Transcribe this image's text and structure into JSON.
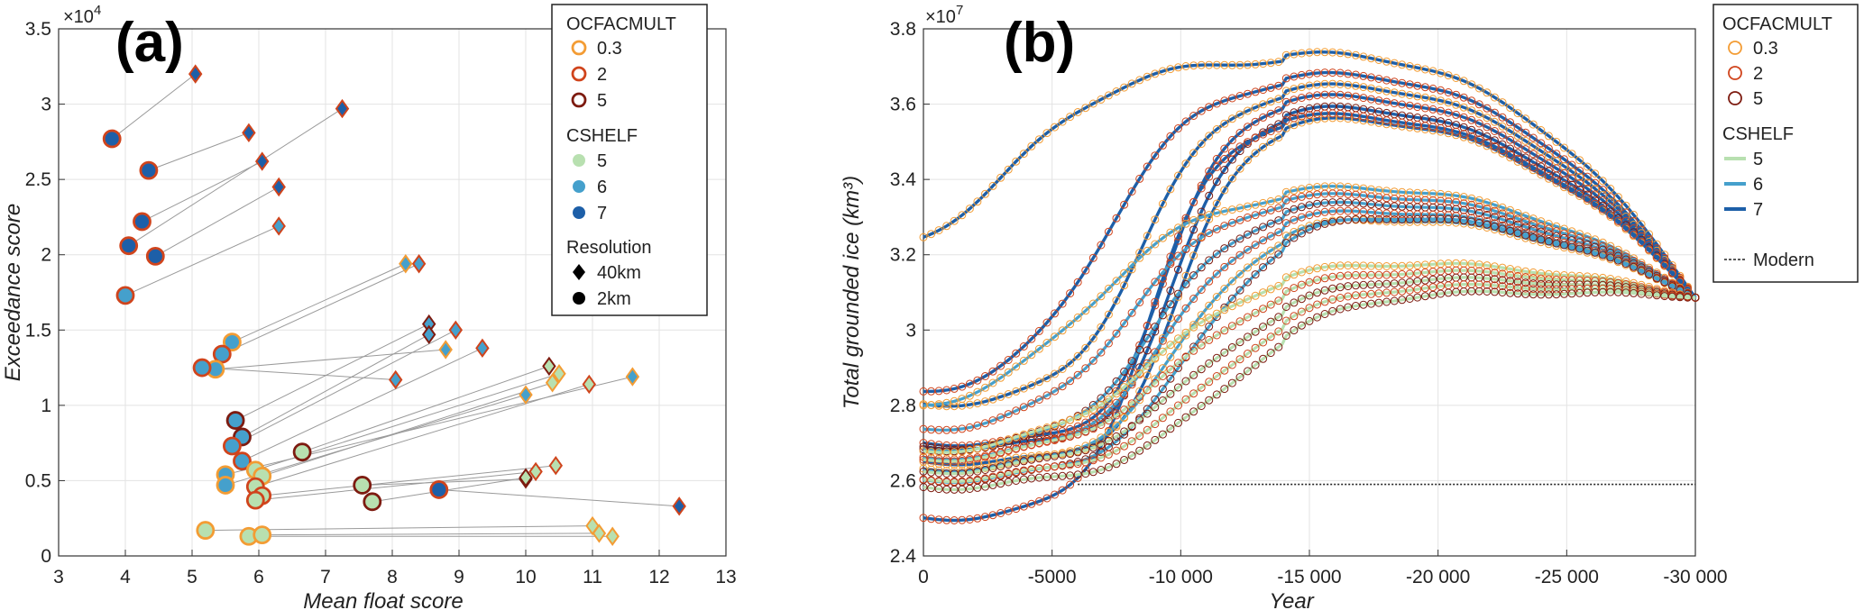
{
  "chart_data": [
    {
      "panel": "(a)",
      "type": "scatter",
      "xlabel": "Mean float score",
      "ylabel": "Exceedance score",
      "xlim": [
        3,
        13
      ],
      "ylim": [
        0,
        35000
      ],
      "xticks": [
        "3",
        "4",
        "5",
        "6",
        "7",
        "8",
        "9",
        "10",
        "11",
        "12",
        "13"
      ],
      "yticks": [
        "0",
        "0.5",
        "1",
        "1.5",
        "2",
        "2.5",
        "3",
        "3.5"
      ],
      "exponent_label": "×10",
      "exponent_power": "4",
      "grid": true,
      "legend": {
        "title_ocfac": "OCFACMULT",
        "ocfac_items": [
          {
            "label": "0.3",
            "color": "#f39c34"
          },
          {
            "label": "2",
            "color": "#d0441c"
          },
          {
            "label": "5",
            "color": "#7d1b10"
          }
        ],
        "title_cshelf": "CSHELF",
        "cshelf_items": [
          {
            "label": "5",
            "color": "#b8e0b0"
          },
          {
            "label": "6",
            "color": "#45a0cc"
          },
          {
            "label": "7",
            "color": "#1d5fa8"
          }
        ],
        "title_res": "Resolution",
        "res_items": [
          {
            "label": "40km",
            "marker": "diamond"
          },
          {
            "label": "2km",
            "marker": "circle"
          }
        ]
      },
      "pairs": [
        {
          "x2": 3.8,
          "y2": 27700,
          "x40": 5.05,
          "y40": 32000,
          "oc": "2",
          "cs": "7"
        },
        {
          "x2": 4.35,
          "y2": 25600,
          "x40": 5.85,
          "y40": 28100,
          "oc": "2",
          "cs": "7"
        },
        {
          "x2": 4.25,
          "y2": 22200,
          "x40": 6.05,
          "y40": 26200,
          "oc": "2",
          "cs": "7"
        },
        {
          "x2": 4.05,
          "y2": 20600,
          "x40": 7.25,
          "y40": 29700,
          "oc": "2",
          "cs": "7"
        },
        {
          "x2": 4.45,
          "y2": 19900,
          "x40": 6.3,
          "y40": 24500,
          "oc": "2",
          "cs": "7"
        },
        {
          "x2": 4.0,
          "y2": 17300,
          "x40": 6.3,
          "y40": 21900,
          "oc": "2",
          "cs": "6"
        },
        {
          "x2": 5.6,
          "y2": 14200,
          "x40": 8.2,
          "y40": 19400,
          "oc": "0.3",
          "cs": "6"
        },
        {
          "x2": 5.45,
          "y2": 13400,
          "x40": 8.4,
          "y40": 19400,
          "oc": "2",
          "cs": "6"
        },
        {
          "x2": 5.35,
          "y2": 12400,
          "x40": 8.8,
          "y40": 13700,
          "oc": "0.3",
          "cs": "6"
        },
        {
          "x2": 5.15,
          "y2": 12500,
          "x40": 8.05,
          "y40": 11700,
          "oc": "2",
          "cs": "6"
        },
        {
          "x2": 5.65,
          "y2": 9000,
          "x40": 8.55,
          "y40": 15400,
          "oc": "5",
          "cs": "6"
        },
        {
          "x2": 5.75,
          "y2": 7900,
          "x40": 8.55,
          "y40": 14700,
          "oc": "5",
          "cs": "6"
        },
        {
          "x2": 5.6,
          "y2": 7300,
          "x40": 8.95,
          "y40": 15000,
          "oc": "2",
          "cs": "6"
        },
        {
          "x2": 5.75,
          "y2": 6300,
          "x40": 9.35,
          "y40": 13800,
          "oc": "2",
          "cs": "6"
        },
        {
          "x2": 6.65,
          "y2": 6900,
          "x40": 10.35,
          "y40": 12600,
          "oc": "5",
          "cs": "5"
        },
        {
          "x2": 5.95,
          "y2": 5700,
          "x40": 10.5,
          "y40": 12100,
          "oc": "0.3",
          "cs": "5"
        },
        {
          "x2": 6.05,
          "y2": 5300,
          "x40": 10.4,
          "y40": 11500,
          "oc": "0.3",
          "cs": "5"
        },
        {
          "x2": 5.5,
          "y2": 5400,
          "x40": 11.6,
          "y40": 11900,
          "oc": "0.3",
          "cs": "6"
        },
        {
          "x2": 5.5,
          "y2": 4700,
          "x40": 10.0,
          "y40": 10700,
          "oc": "0.3",
          "cs": "6"
        },
        {
          "x2": 5.95,
          "y2": 4600,
          "x40": 10.95,
          "y40": 11400,
          "oc": "2",
          "cs": "5"
        },
        {
          "x2": 6.05,
          "y2": 4000,
          "x40": 10.45,
          "y40": 6000,
          "oc": "2",
          "cs": "5"
        },
        {
          "x2": 5.95,
          "y2": 3700,
          "x40": 10.15,
          "y40": 5600,
          "oc": "2",
          "cs": "5"
        },
        {
          "x2": 7.55,
          "y2": 4700,
          "x40": 10.0,
          "y40": 5100,
          "oc": "5",
          "cs": "5"
        },
        {
          "x2": 7.7,
          "y2": 3600,
          "x40": 10.0,
          "y40": 5200,
          "oc": "5",
          "cs": "5"
        },
        {
          "x2": 8.7,
          "y2": 4400,
          "x40": 12.3,
          "y40": 3300,
          "oc": "2",
          "cs": "7"
        },
        {
          "x2": 5.2,
          "y2": 1700,
          "x40": 11.0,
          "y40": 2000,
          "oc": "0.3",
          "cs": "5"
        },
        {
          "x2": 5.85,
          "y2": 1300,
          "x40": 11.3,
          "y40": 1300,
          "oc": "0.3",
          "cs": "5"
        },
        {
          "x2": 6.05,
          "y2": 1400,
          "x40": 11.1,
          "y40": 1500,
          "oc": "0.3",
          "cs": "5"
        }
      ]
    },
    {
      "panel": "(b)",
      "type": "line",
      "xlabel": "Year",
      "ylabel": "Total grounded ice (km³)",
      "xlim": [
        0,
        -30000
      ],
      "ylim": [
        24000000,
        38000000
      ],
      "xticks": [
        "0",
        "-5000",
        "-10 000",
        "-15 000",
        "-20 000",
        "-25 000",
        "-30 000"
      ],
      "yticks": [
        "2.4",
        "2.6",
        "2.8",
        "3",
        "3.2",
        "3.4",
        "3.6",
        "3.8"
      ],
      "exponent_label": "×10",
      "exponent_power": "7",
      "modern_value": 25900000,
      "legend": {
        "title_ocfac": "OCFACMULT",
        "ocfac_items": [
          {
            "label": "0.3",
            "color": "#f39c34"
          },
          {
            "label": "2",
            "color": "#d0441c"
          },
          {
            "label": "5",
            "color": "#7d1b10"
          }
        ],
        "title_cshelf": "CSHELF",
        "cshelf_items": [
          {
            "label": "5",
            "color": "#b8e0b0"
          },
          {
            "label": "6",
            "color": "#45a0cc"
          },
          {
            "label": "7",
            "color": "#1d5fa8"
          }
        ],
        "modern_label": "Modern"
      },
      "end_value": 30900000,
      "series": [
        {
          "start": 31500000,
          "plateau": 37200000,
          "rise_mid": -3500,
          "rise_w": 2200,
          "oc": "0.3",
          "cs": "7"
        },
        {
          "start": 28200000,
          "plateau": 36700000,
          "rise_mid": -7000,
          "rise_w": 1800,
          "oc": "2",
          "cs": "7"
        },
        {
          "start": 28000000,
          "plateau": 36400000,
          "rise_mid": -8500,
          "rise_w": 1500,
          "oc": "0.3",
          "cs": "7"
        },
        {
          "start": 27000000,
          "plateau": 36100000,
          "rise_mid": -9500,
          "rise_w": 1200,
          "oc": "2",
          "cs": "7"
        },
        {
          "start": 26900000,
          "plateau": 35800000,
          "rise_mid": -9800,
          "rise_w": 1200,
          "oc": "5",
          "cs": "7"
        },
        {
          "start": 26500000,
          "plateau": 35500000,
          "rise_mid": -10000,
          "rise_w": 1200,
          "oc": "0.3",
          "cs": "7"
        },
        {
          "start": 25000000,
          "plateau": 35600000,
          "rise_mid": -8800,
          "rise_w": 1300,
          "oc": "2",
          "cs": "7"
        },
        {
          "start": 27700000,
          "plateau": 33700000,
          "rise_mid": -6500,
          "rise_w": 2200,
          "oc": "0.3",
          "cs": "6"
        },
        {
          "start": 27300000,
          "plateau": 33500000,
          "rise_mid": -8000,
          "rise_w": 1800,
          "oc": "2",
          "cs": "6"
        },
        {
          "start": 26800000,
          "plateau": 33300000,
          "rise_mid": -9000,
          "rise_w": 1700,
          "oc": "5",
          "cs": "6"
        },
        {
          "start": 26600000,
          "plateau": 33100000,
          "rise_mid": -9500,
          "rise_w": 1700,
          "oc": "2",
          "cs": "6"
        },
        {
          "start": 26300000,
          "plateau": 32900000,
          "rise_mid": -10000,
          "rise_w": 1700,
          "oc": "0.3",
          "cs": "6"
        },
        {
          "start": 26000000,
          "plateau": 33000000,
          "rise_mid": -10500,
          "rise_w": 1800,
          "oc": "5",
          "cs": "6"
        },
        {
          "start": 26700000,
          "plateau": 31700000,
          "rise_mid": -9000,
          "rise_w": 2200,
          "oc": "0.3",
          "cs": "5"
        },
        {
          "start": 26500000,
          "plateau": 31500000,
          "rise_mid": -9800,
          "rise_w": 2200,
          "oc": "2",
          "cs": "5"
        },
        {
          "start": 26200000,
          "plateau": 31300000,
          "rise_mid": -10500,
          "rise_w": 2200,
          "oc": "5",
          "cs": "5"
        },
        {
          "start": 26000000,
          "plateau": 31100000,
          "rise_mid": -11000,
          "rise_w": 2200,
          "oc": "2",
          "cs": "5"
        },
        {
          "start": 25800000,
          "plateau": 30900000,
          "rise_mid": -11500,
          "rise_w": 2200,
          "oc": "5",
          "cs": "5"
        }
      ]
    }
  ],
  "panel_a": {
    "label": "(a)"
  },
  "panel_b": {
    "label": "(b)"
  }
}
